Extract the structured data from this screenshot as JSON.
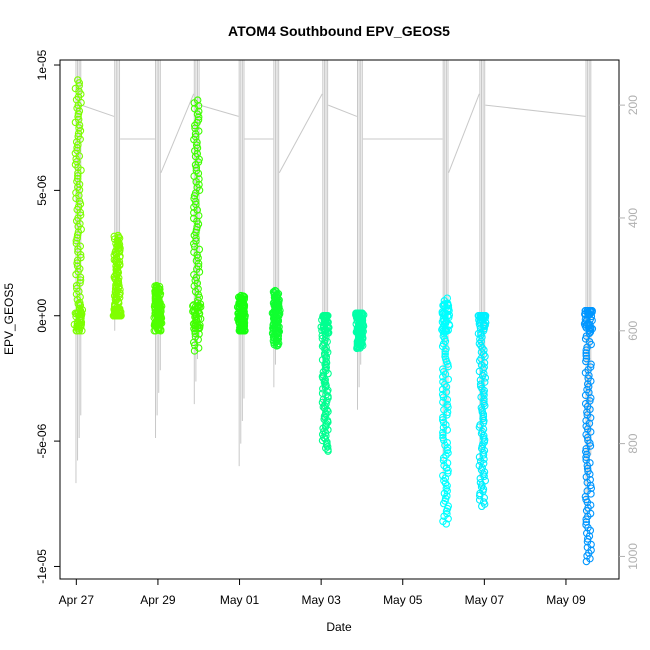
{
  "chart_data": {
    "type": "scatter",
    "title": "ATOM4 Southbound EPV_GEOS5",
    "xlabel": "Date",
    "ylabel": "EPV_GEOS5",
    "x_ticks": [
      "Apr 27",
      "Apr 29",
      "May 01",
      "May 03",
      "May 05",
      "May 07",
      "May 09"
    ],
    "x_tick_days": [
      27,
      29,
      31,
      33,
      35,
      37,
      39
    ],
    "xlim": [
      26.6,
      40.3
    ],
    "y_ticks": [
      "-1e-05",
      "-5e-06",
      "0e+00",
      "5e-06",
      "1e-05"
    ],
    "y_tick_values": [
      -1e-05,
      -5e-06,
      0,
      5e-06,
      1e-05
    ],
    "ylim": [
      -1.05e-05,
      1.02e-05
    ],
    "right_axis": {
      "label_color": "#b0b0b0",
      "ticks": [
        "200",
        "400",
        "600",
        "800",
        "1000"
      ],
      "tick_values": [
        200,
        400,
        600,
        800,
        1000
      ],
      "range_top": 120,
      "range_bottom": 1040
    },
    "grid": false,
    "legend": "none",
    "marker": "open-circle",
    "pressure_line_color": "#c8c8c8",
    "series": [
      {
        "day": 27.05,
        "color": "#7dff00",
        "ymin": -6e-07,
        "ymax": 9.4e-06,
        "pmin": 120,
        "pmax": 870
      },
      {
        "day": 28.0,
        "color": "#80ff00",
        "ymin": 0.0,
        "ymax": 3.2e-06,
        "pmin": 120,
        "pmax": 600
      },
      {
        "day": 29.0,
        "color": "#50ff00",
        "ymin": -6e-07,
        "ymax": 1.2e-06,
        "pmin": 120,
        "pmax": 790
      },
      {
        "day": 29.95,
        "color": "#40ff00",
        "ymin": -1.4e-06,
        "ymax": 8.6e-06,
        "pmin": 120,
        "pmax": 730
      },
      {
        "day": 31.05,
        "color": "#18ff10",
        "ymin": -6e-07,
        "ymax": 8e-07,
        "pmin": 120,
        "pmax": 840
      },
      {
        "day": 31.9,
        "color": "#10ff30",
        "ymin": -1.2e-06,
        "ymax": 1e-06,
        "pmin": 120,
        "pmax": 700
      },
      {
        "day": 33.1,
        "color": "#00ff90",
        "ymin": -5.4e-06,
        "ymax": 0.0,
        "pmin": 120,
        "pmax": 790
      },
      {
        "day": 33.95,
        "color": "#00ffa8",
        "ymin": -1.3e-06,
        "ymax": 1e-07,
        "pmin": 120,
        "pmax": 740
      },
      {
        "day": 36.05,
        "color": "#00ffff",
        "ymin": -8.3e-06,
        "ymax": 7e-07,
        "pmin": 120,
        "pmax": 860
      },
      {
        "day": 36.95,
        "color": "#00f0ff",
        "ymin": -7.6e-06,
        "ymax": 0.0,
        "pmin": 120,
        "pmax": 860
      },
      {
        "day": 39.55,
        "color": "#0096ff",
        "ymin": -9.8e-06,
        "ymax": 2e-07,
        "pmin": 120,
        "pmax": 940
      }
    ]
  }
}
